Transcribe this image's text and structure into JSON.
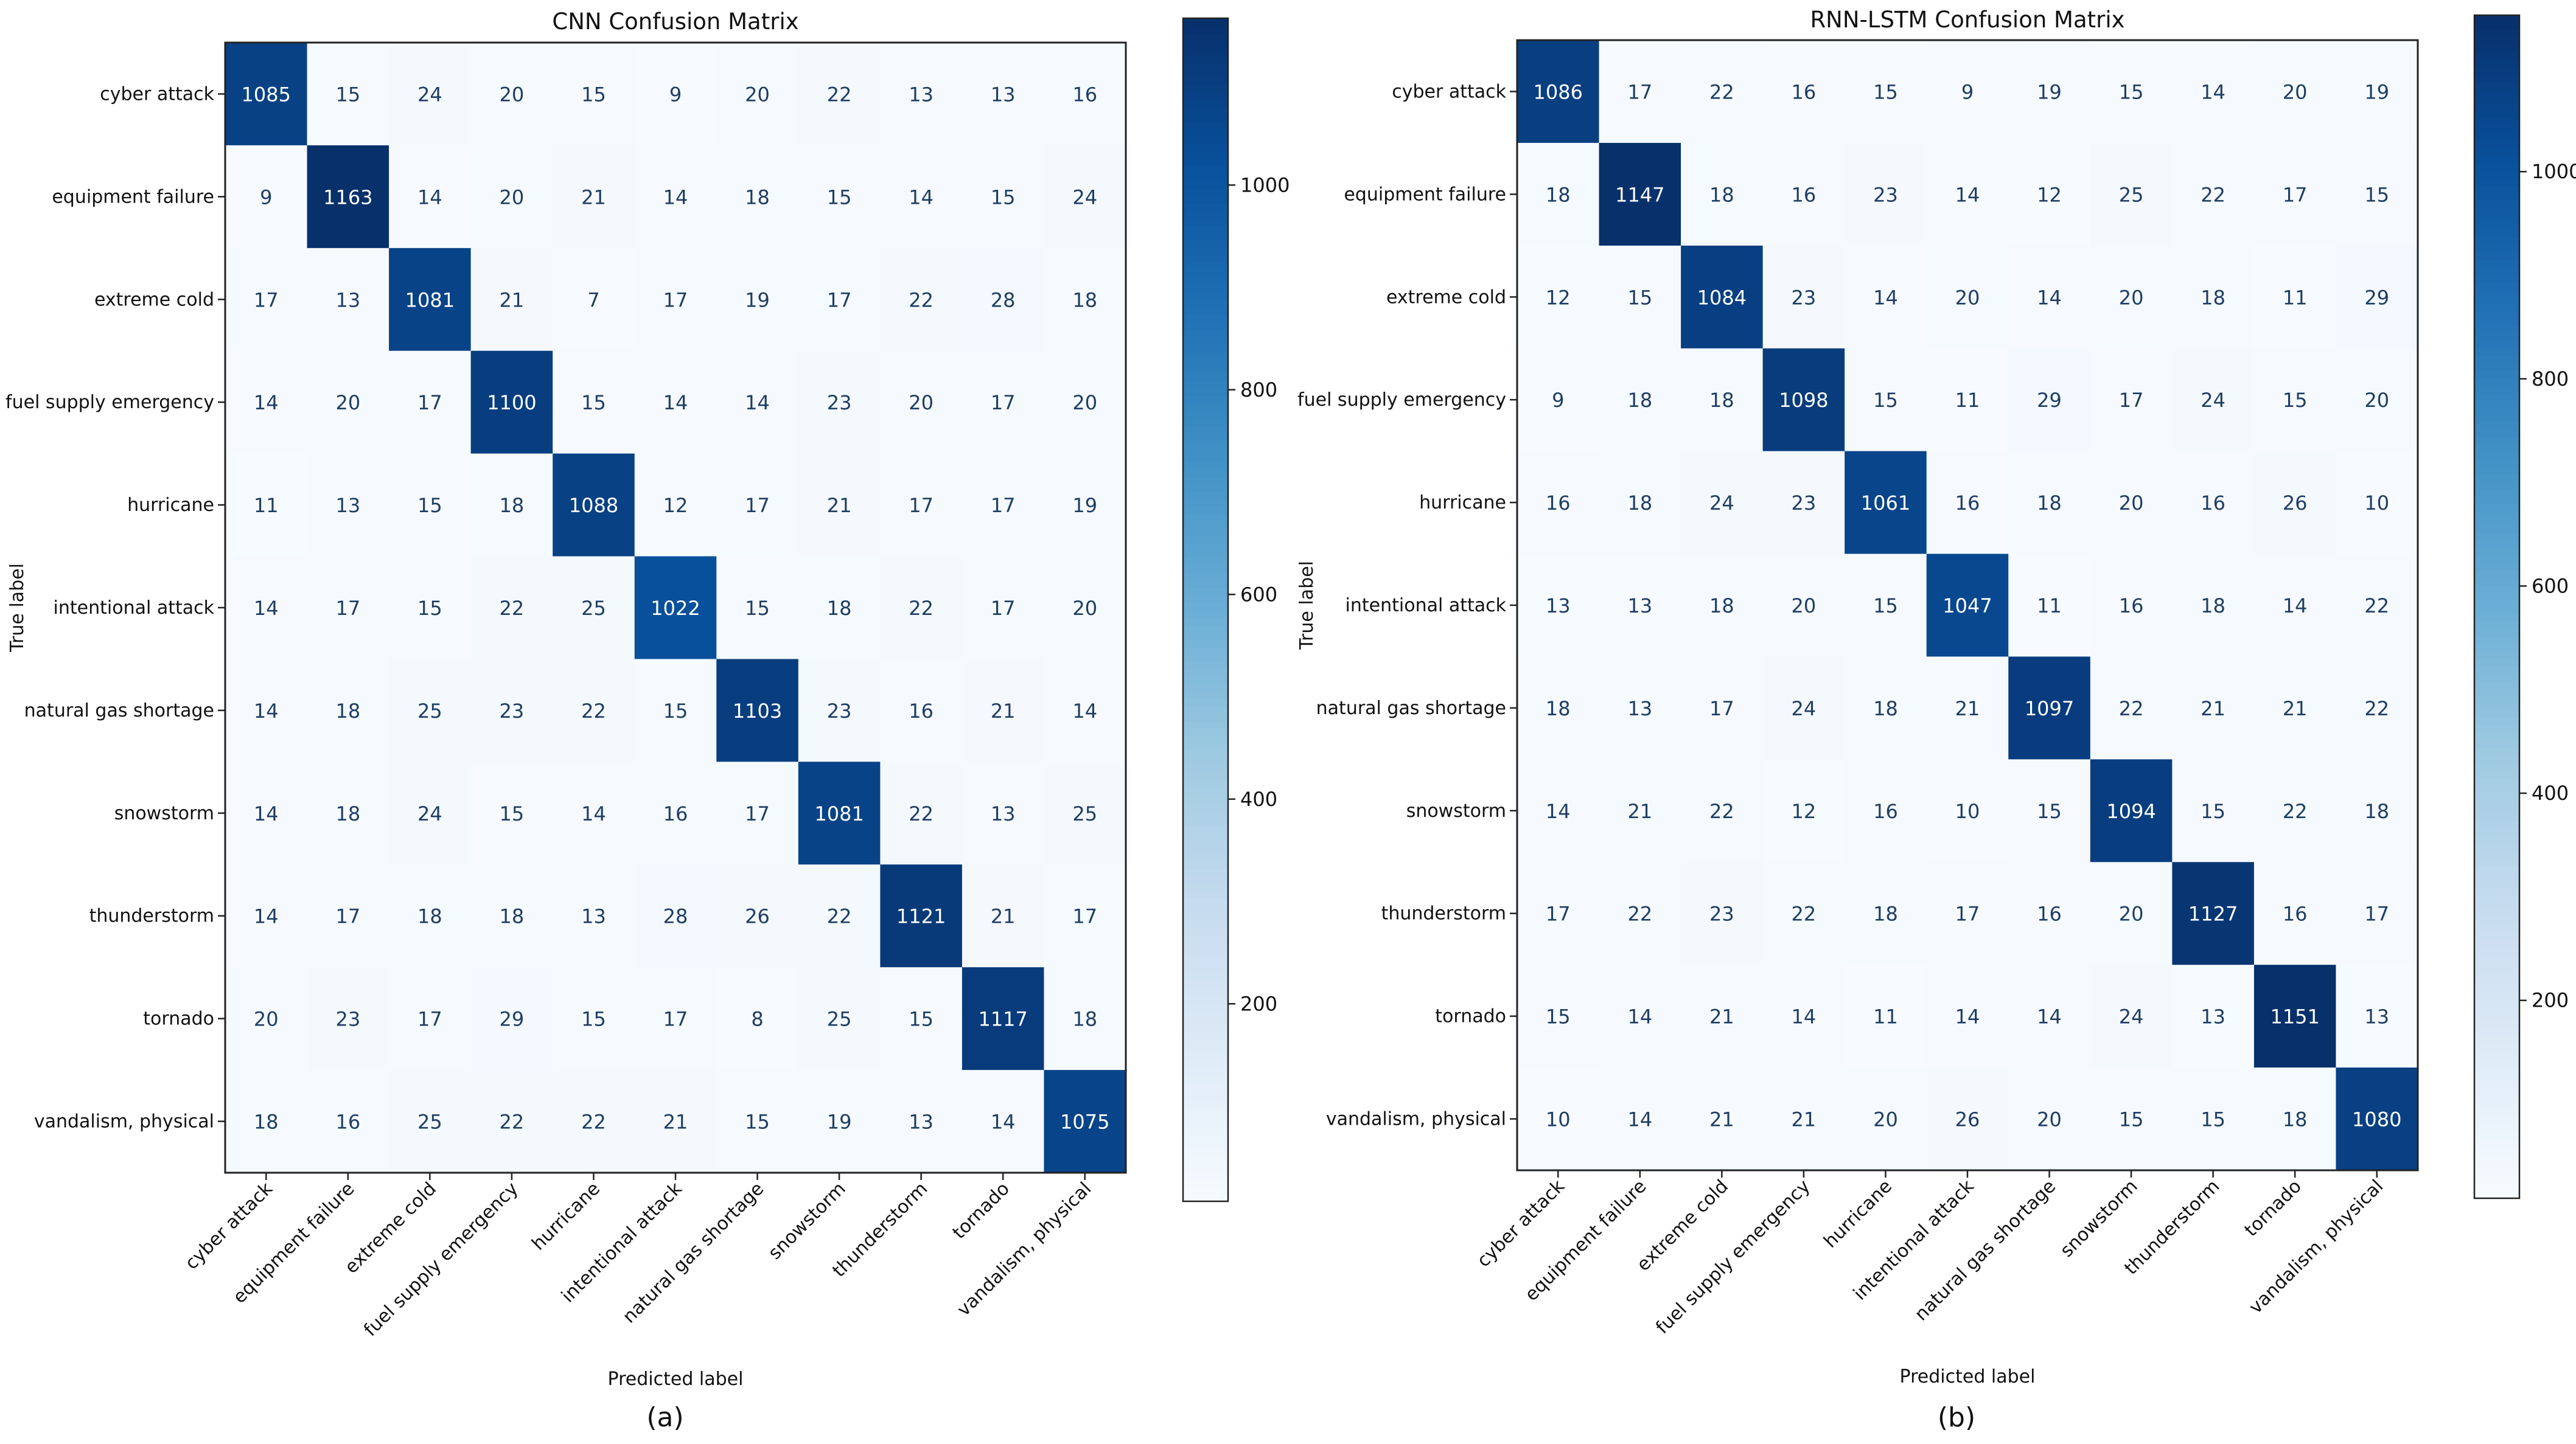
{
  "chart_data": [
    {
      "type": "heatmap",
      "panel_label": "(a)",
      "title": "CNN Confusion Matrix",
      "xlabel": "Predicted label",
      "ylabel": "True label",
      "colormap": "Blues",
      "colorbar_ticks": [
        200,
        400,
        600,
        800,
        1000
      ],
      "colorbar_range": [
        7,
        1163
      ],
      "labels": [
        "cyber attack",
        "equipment failure",
        "extreme cold",
        "fuel supply emergency",
        "hurricane",
        "intentional attack",
        "natural gas shortage",
        "snowstorm",
        "thunderstorm",
        "tornado",
        "vandalism, physical"
      ],
      "matrix": [
        [
          1085,
          15,
          24,
          20,
          15,
          9,
          20,
          22,
          13,
          13,
          16
        ],
        [
          9,
          1163,
          14,
          20,
          21,
          14,
          18,
          15,
          14,
          15,
          24
        ],
        [
          17,
          13,
          1081,
          21,
          7,
          17,
          19,
          17,
          22,
          28,
          18
        ],
        [
          14,
          20,
          17,
          1100,
          15,
          14,
          14,
          23,
          20,
          17,
          20
        ],
        [
          11,
          13,
          15,
          18,
          1088,
          12,
          17,
          21,
          17,
          17,
          19
        ],
        [
          14,
          17,
          15,
          22,
          25,
          1022,
          15,
          18,
          22,
          17,
          20
        ],
        [
          14,
          18,
          25,
          23,
          22,
          15,
          1103,
          23,
          16,
          21,
          14
        ],
        [
          14,
          18,
          24,
          15,
          14,
          16,
          17,
          1081,
          22,
          13,
          25
        ],
        [
          14,
          17,
          18,
          18,
          13,
          28,
          26,
          22,
          1121,
          21,
          17
        ],
        [
          20,
          23,
          17,
          29,
          15,
          17,
          8,
          25,
          15,
          1117,
          18
        ],
        [
          18,
          16,
          25,
          22,
          22,
          21,
          15,
          19,
          13,
          14,
          1075
        ]
      ]
    },
    {
      "type": "heatmap",
      "panel_label": "(b)",
      "title": "RNN-LSTM Confusion Matrix",
      "xlabel": "Predicted label",
      "ylabel": "True label",
      "colormap": "Blues",
      "colorbar_ticks": [
        200,
        400,
        600,
        800,
        1000
      ],
      "colorbar_range": [
        9,
        1151
      ],
      "labels": [
        "cyber attack",
        "equipment failure",
        "extreme cold",
        "fuel supply emergency",
        "hurricane",
        "intentional attack",
        "natural gas shortage",
        "snowstorm",
        "thunderstorm",
        "tornado",
        "vandalism, physical"
      ],
      "matrix": [
        [
          1086,
          17,
          22,
          16,
          15,
          9,
          19,
          15,
          14,
          20,
          19
        ],
        [
          18,
          1147,
          18,
          16,
          23,
          14,
          12,
          25,
          22,
          17,
          15
        ],
        [
          12,
          15,
          1084,
          23,
          14,
          20,
          14,
          20,
          18,
          11,
          29
        ],
        [
          9,
          18,
          18,
          1098,
          15,
          11,
          29,
          17,
          24,
          15,
          20
        ],
        [
          16,
          18,
          24,
          23,
          1061,
          16,
          18,
          20,
          16,
          26,
          10
        ],
        [
          13,
          13,
          18,
          20,
          15,
          1047,
          11,
          16,
          18,
          14,
          22
        ],
        [
          18,
          13,
          17,
          24,
          18,
          21,
          1097,
          22,
          21,
          21,
          22
        ],
        [
          14,
          21,
          22,
          12,
          16,
          10,
          15,
          1094,
          15,
          22,
          18
        ],
        [
          17,
          22,
          23,
          22,
          18,
          17,
          16,
          20,
          1127,
          16,
          17
        ],
        [
          15,
          14,
          21,
          14,
          11,
          14,
          14,
          24,
          13,
          1151,
          13
        ],
        [
          10,
          14,
          21,
          21,
          20,
          26,
          20,
          15,
          15,
          18,
          1080
        ]
      ]
    }
  ]
}
